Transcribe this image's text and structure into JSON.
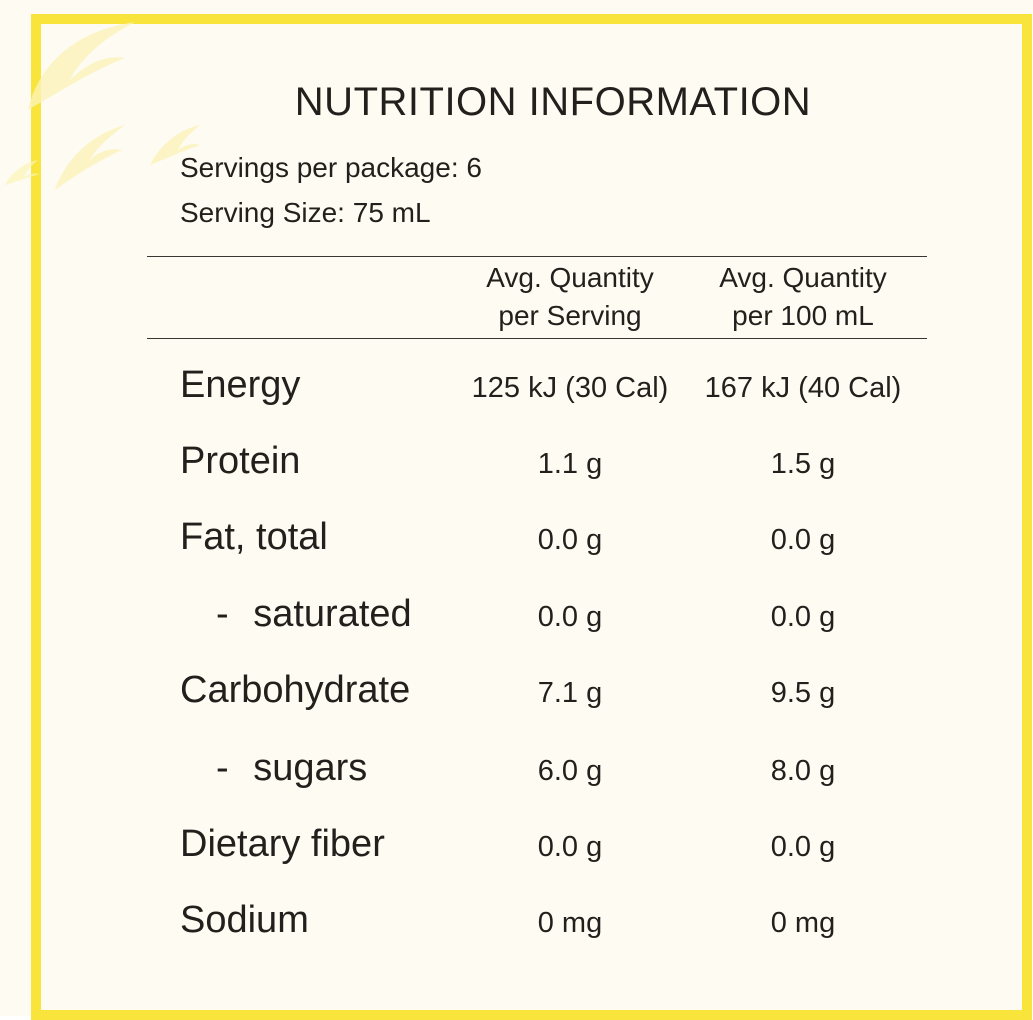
{
  "header": {
    "title": "NUTRITION INFORMATION",
    "servings_per_package": "Servings per package: 6",
    "serving_size": "Serving Size: 75 mL"
  },
  "table": {
    "columns": [
      "Avg. Quantity\nper Serving",
      "Avg. Quantity\nper 100 mL"
    ],
    "rows": [
      [
        "Energy",
        "125 kJ (30 Cal)",
        "167 kJ (40 Cal)"
      ],
      [
        "Protein",
        "1.1 g",
        "1.5 g"
      ],
      [
        "Fat, total",
        "0.0 g",
        "0.0 g"
      ],
      [
        "- saturated",
        "0.0 g",
        "0.0 g"
      ],
      [
        "Carbohydrate",
        "7.1 g",
        "9.5 g"
      ],
      [
        "- sugars",
        "6.0 g",
        "8.0 g"
      ],
      [
        "Dietary fiber",
        "0.0 g",
        "0.0 g"
      ],
      [
        "Sodium",
        "0 mg",
        "0 mg"
      ]
    ]
  }
}
